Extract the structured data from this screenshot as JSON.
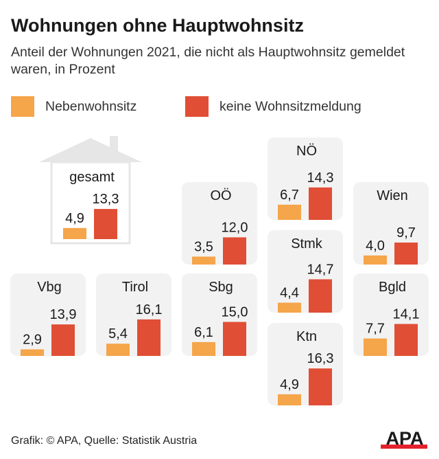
{
  "title": "Wohnungen ohne Hauptwohnsitz",
  "subtitle": "Anteil der Wohnungen 2021, die nicht als Hauptwohnsitz gemeldet waren, in Prozent",
  "footer": "Grafik: © APA, Quelle: Statistik Austria",
  "logo": "APA",
  "colors": {
    "nebenwohnsitz": "#F5A54A",
    "keine": "#E04E35",
    "tile": "#F2F2F2",
    "house": "#E6E6E6"
  },
  "chart_data": {
    "type": "bar",
    "legend": [
      "Nebenwohnsitz",
      "keine Wohnsitzmeldung"
    ],
    "series": [
      {
        "name": "Nebenwohnsitz"
      },
      {
        "name": "keine Wohnsitzmeldung"
      }
    ],
    "panels": [
      {
        "label": "gesamt",
        "values": [
          4.9,
          13.3
        ],
        "display": [
          "4,9",
          "13,3"
        ]
      },
      {
        "label": "OÖ",
        "values": [
          3.5,
          12.0
        ],
        "display": [
          "3,5",
          "12,0"
        ]
      },
      {
        "label": "NÖ",
        "values": [
          6.7,
          14.3
        ],
        "display": [
          "6,7",
          "14,3"
        ]
      },
      {
        "label": "Wien",
        "values": [
          4.0,
          9.7
        ],
        "display": [
          "4,0",
          "9,7"
        ]
      },
      {
        "label": "Stmk",
        "values": [
          4.4,
          14.7
        ],
        "display": [
          "4,4",
          "14,7"
        ]
      },
      {
        "label": "Vbg",
        "values": [
          2.9,
          13.9
        ],
        "display": [
          "2,9",
          "13,9"
        ]
      },
      {
        "label": "Tirol",
        "values": [
          5.4,
          16.1
        ],
        "display": [
          "5,4",
          "16,1"
        ]
      },
      {
        "label": "Sbg",
        "values": [
          6.1,
          15.0
        ],
        "display": [
          "6,1",
          "15,0"
        ]
      },
      {
        "label": "Bgld",
        "values": [
          7.7,
          14.1
        ],
        "display": [
          "7,7",
          "14,1"
        ]
      },
      {
        "label": "Ktn",
        "values": [
          4.9,
          16.3
        ],
        "display": [
          "4,9",
          "16,3"
        ]
      }
    ]
  }
}
